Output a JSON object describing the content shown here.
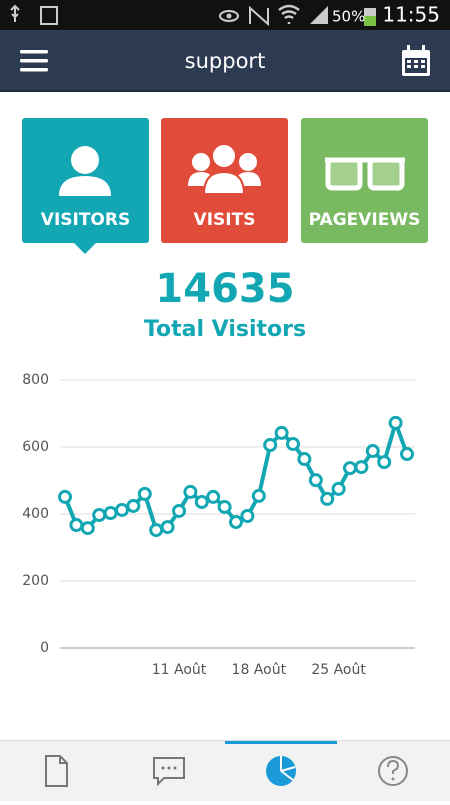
{
  "status_bar": {
    "battery": "50%",
    "time": "11:55"
  },
  "header": {
    "title": "support"
  },
  "tiles": [
    {
      "label": "VISITORS"
    },
    {
      "label": "VISITS"
    },
    {
      "label": "PAGEVIEWS"
    }
  ],
  "total": {
    "value": 14635,
    "label": "Total Visitors"
  },
  "chart_data": {
    "type": "line",
    "categories": [
      null,
      null,
      null,
      null,
      null,
      null,
      null,
      null,
      null,
      null,
      "11 Août",
      null,
      null,
      null,
      null,
      null,
      null,
      "18 Août",
      null,
      null,
      null,
      null,
      null,
      null,
      "25 Août",
      null,
      null,
      null,
      null,
      null,
      null
    ],
    "series": [
      {
        "color": "#13a7b4",
        "values": [
          451,
          367,
          358,
          397,
          403,
          412,
          424,
          460,
          352,
          361,
          409,
          466,
          436,
          451,
          421,
          376,
          394,
          454,
          606,
          642,
          609,
          564,
          501,
          445,
          475,
          537,
          540,
          588,
          555,
          672,
          579
        ]
      }
    ],
    "ylim": [
      0,
      800
    ],
    "yticks": [
      0,
      200,
      400,
      600,
      800
    ],
    "grid": true
  }
}
